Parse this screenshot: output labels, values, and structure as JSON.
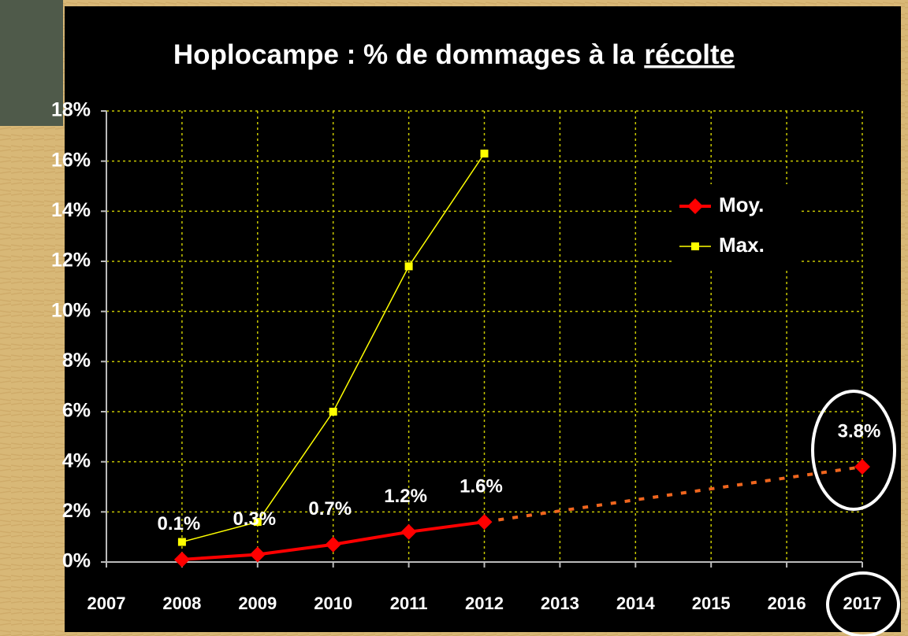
{
  "chart_data": {
    "type": "line",
    "title": [
      "Hoplocampe : % de dommages à la",
      "récolte"
    ],
    "title_underlined": [
      false,
      true
    ],
    "x": [
      2008,
      2009,
      2010,
      2011,
      2012,
      2013,
      2014,
      2015,
      2016,
      2017
    ],
    "series": [
      {
        "name": "Moy.",
        "color": "#ff0000",
        "marker": "diamond",
        "line_width": 4,
        "gap_line_color": "#f0661e",
        "values": [
          0.1,
          0.3,
          0.7,
          1.2,
          1.6,
          null,
          null,
          null,
          null,
          3.8
        ],
        "value_labels": [
          "0.1%",
          "0.3%",
          "0.7%",
          "1.2%",
          "1.6%",
          null,
          null,
          null,
          null,
          "3.8%"
        ]
      },
      {
        "name": "Max.",
        "color": "#ffff00",
        "marker": "square",
        "line_width": 1.5,
        "values": [
          0.8,
          1.6,
          6.0,
          11.8,
          16.3,
          null,
          null,
          null,
          null,
          null
        ]
      }
    ],
    "xlim": [
      2007,
      2017
    ],
    "xticks": [
      2007,
      2008,
      2009,
      2010,
      2011,
      2012,
      2013,
      2014,
      2015,
      2016,
      2017
    ],
    "ylim": [
      0,
      18
    ],
    "yticks": [
      {
        "value": 0,
        "label": "0%"
      },
      {
        "value": 2,
        "label": "2%"
      },
      {
        "value": 4,
        "label": "4%"
      },
      {
        "value": 6,
        "label": "6%"
      },
      {
        "value": 8,
        "label": "8%"
      },
      {
        "value": 10,
        "label": "10%"
      },
      {
        "value": 12,
        "label": "12%"
      },
      {
        "value": 14,
        "label": "14%"
      },
      {
        "value": 16,
        "label": "16%"
      },
      {
        "value": 18,
        "label": "18%"
      }
    ],
    "grid": true,
    "grid_color": "#c8c800",
    "legend": "upper right"
  }
}
